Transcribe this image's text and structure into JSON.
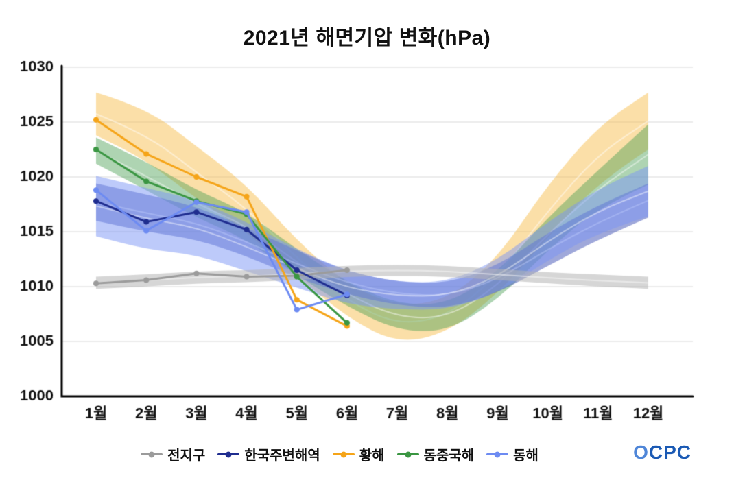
{
  "title": "2021년 해면기압 변화(hPa)",
  "logo": {
    "text": "OCPC",
    "color": "#1b5ab4"
  },
  "chart_data": {
    "type": "line",
    "title": "2021년 해면기압 변화(hPa)",
    "unit": "hPa",
    "categories": [
      "1월",
      "2월",
      "3월",
      "4월",
      "5월",
      "6월",
      "7월",
      "8월",
      "9월",
      "10월",
      "11월",
      "12월"
    ],
    "ylim": [
      1000,
      1030
    ],
    "yticks": [
      1000,
      1005,
      1010,
      1015,
      1020,
      1025,
      1030
    ],
    "grid": "horizontal",
    "legend_position": "bottom",
    "series": [
      {
        "name": "전지구",
        "color": "#9b9b9b",
        "values": [
          1010.3,
          1010.6,
          1011.2,
          1010.9,
          1011.0,
          1011.5,
          null,
          null,
          null,
          null,
          null,
          null
        ]
      },
      {
        "name": "한국주변해역",
        "color": "#1f2d8f",
        "values": [
          1017.8,
          1015.9,
          1016.8,
          1015.2,
          1011.5,
          1009.2,
          null,
          null,
          null,
          null,
          null,
          null
        ]
      },
      {
        "name": "황해",
        "color": "#f5a418",
        "values": [
          1025.2,
          1022.1,
          1020.0,
          1018.2,
          1008.8,
          1006.4,
          null,
          null,
          null,
          null,
          null,
          null
        ]
      },
      {
        "name": "동중국해",
        "color": "#3a9642",
        "values": [
          1022.5,
          1019.6,
          1017.8,
          1016.6,
          1010.9,
          1006.7,
          null,
          null,
          null,
          null,
          null,
          null
        ]
      },
      {
        "name": "동해",
        "color": "#6d8bf2",
        "values": [
          1018.8,
          1015.1,
          1017.7,
          1016.8,
          1007.9,
          1009.3,
          null,
          null,
          null,
          null,
          null,
          null
        ]
      }
    ],
    "bands": [
      {
        "name": "황해-range",
        "color": "#f6b93f",
        "opacity": 0.45,
        "lower": [
          1023.8,
          1021.5,
          1018.0,
          1015.0,
          1011.0,
          1007.2,
          1004.8,
          1005.8,
          1009.3,
          1014.5,
          1019.5,
          1022.5
        ],
        "upper": [
          1027.7,
          1026.3,
          1022.8,
          1019.3,
          1014.2,
          1010.2,
          1008.2,
          1008.8,
          1012.6,
          1019.3,
          1024.6,
          1027.7
        ]
      },
      {
        "name": "동중국해-range",
        "color": "#4ca054",
        "opacity": 0.45,
        "lower": [
          1021.2,
          1018.8,
          1016.3,
          1014.3,
          1011.0,
          1008.2,
          1006.0,
          1005.9,
          1008.8,
          1013.3,
          1017.2,
          1019.3
        ],
        "upper": [
          1023.6,
          1021.4,
          1018.8,
          1016.8,
          1013.4,
          1010.4,
          1008.4,
          1008.4,
          1011.3,
          1016.3,
          1020.6,
          1024.8
        ]
      },
      {
        "name": "한국주변해역-range",
        "color": "#3f51b5",
        "opacity": 0.5,
        "lower": [
          1016.0,
          1015.0,
          1014.3,
          1012.8,
          1010.8,
          1009.3,
          1008.3,
          1008.0,
          1009.4,
          1011.9,
          1014.3,
          1016.3
        ],
        "upper": [
          1019.4,
          1018.4,
          1017.3,
          1015.4,
          1013.3,
          1011.4,
          1010.4,
          1010.3,
          1011.9,
          1014.9,
          1017.4,
          1019.4
        ]
      },
      {
        "name": "동해-range",
        "color": "#7b96f5",
        "opacity": 0.5,
        "lower": [
          1014.6,
          1013.4,
          1012.9,
          1011.4,
          1009.9,
          1008.4,
          1007.9,
          1007.9,
          1009.4,
          1012.4,
          1014.9,
          1016.4
        ],
        "upper": [
          1020.1,
          1019.0,
          1017.9,
          1015.9,
          1013.4,
          1011.4,
          1010.4,
          1010.4,
          1012.4,
          1015.9,
          1018.9,
          1021.0
        ]
      },
      {
        "name": "전지구-range",
        "color": "#b5b5b5",
        "opacity": 0.55,
        "lower": [
          1009.8,
          1010.0,
          1010.3,
          1010.4,
          1010.6,
          1010.9,
          1011.0,
          1010.9,
          1010.6,
          1010.3,
          1010.0,
          1009.8
        ],
        "upper": [
          1010.9,
          1011.1,
          1011.4,
          1011.5,
          1011.7,
          1011.9,
          1012.0,
          1011.9,
          1011.6,
          1011.3,
          1011.1,
          1010.9
        ]
      }
    ]
  }
}
